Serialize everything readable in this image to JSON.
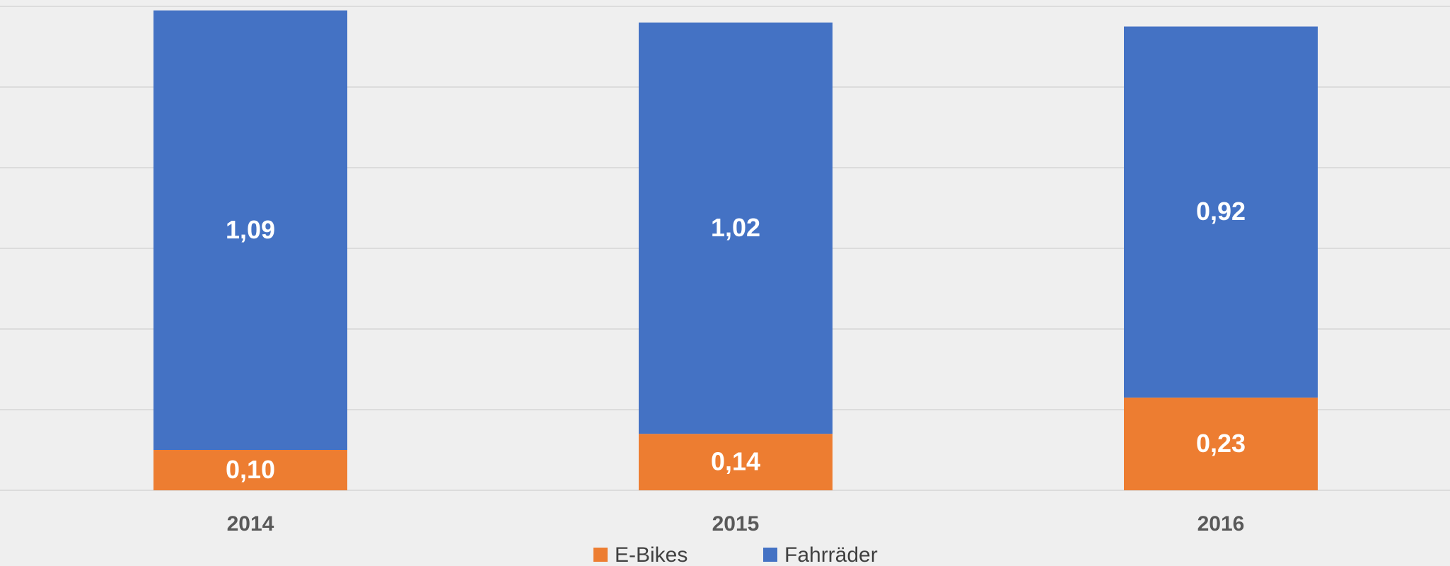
{
  "chart_data": {
    "type": "stacked-bar",
    "categories": [
      "2014",
      "2015",
      "2016"
    ],
    "series": [
      {
        "name": "E-Bikes",
        "color": "#ed7d31",
        "values": [
          0.1,
          0.14,
          0.23
        ],
        "value_labels": [
          "0,10",
          "0,14",
          "0,23"
        ]
      },
      {
        "name": "Fahrräder",
        "color": "#4472c4",
        "values": [
          1.09,
          1.02,
          0.92
        ],
        "value_labels": [
          "1,09",
          "1,02",
          "0,92"
        ]
      }
    ],
    "ylim": [
      0,
      1.2
    ],
    "yticks": [
      0,
      0.2,
      0.4,
      0.6,
      0.8,
      1.0,
      1.2
    ],
    "grid": true,
    "legend": "bottom"
  }
}
